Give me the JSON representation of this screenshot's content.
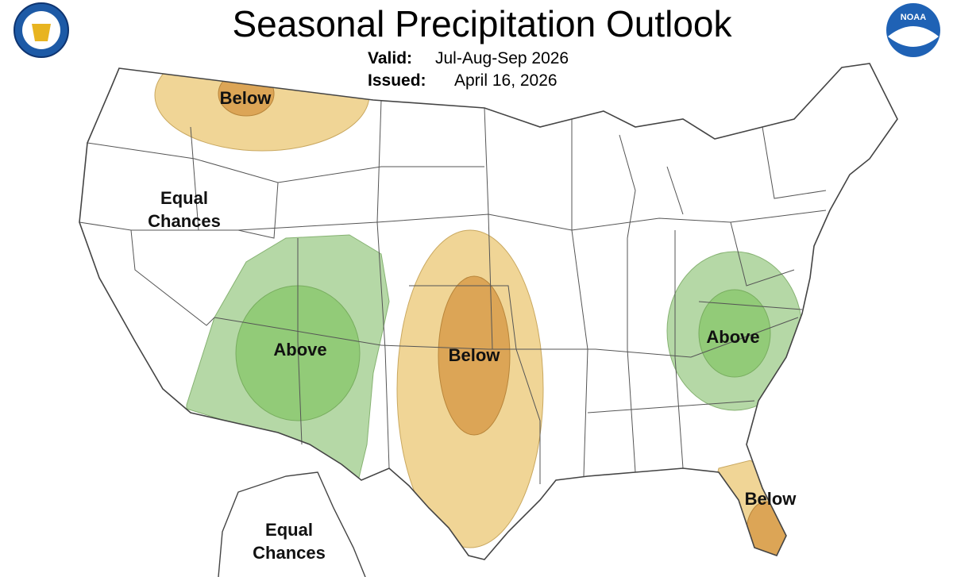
{
  "header": {
    "title": "Seasonal Precipitation Outlook",
    "valid_label": "Valid:",
    "valid_value": "Jul-Aug-Sep 2026",
    "issued_label": "Issued:",
    "issued_value": "April 16, 2026",
    "noaa_logo": "NOAA"
  },
  "regions": [
    {
      "lines": [
        "Below"
      ]
    },
    {
      "lines": [
        "Equal",
        "Chances"
      ]
    },
    {
      "lines": [
        "Above"
      ]
    },
    {
      "lines": [
        "Below"
      ]
    },
    {
      "lines": [
        "Above"
      ]
    },
    {
      "lines": [
        "Below"
      ]
    },
    {
      "lines": [
        "Equal",
        "Chances"
      ]
    }
  ]
}
